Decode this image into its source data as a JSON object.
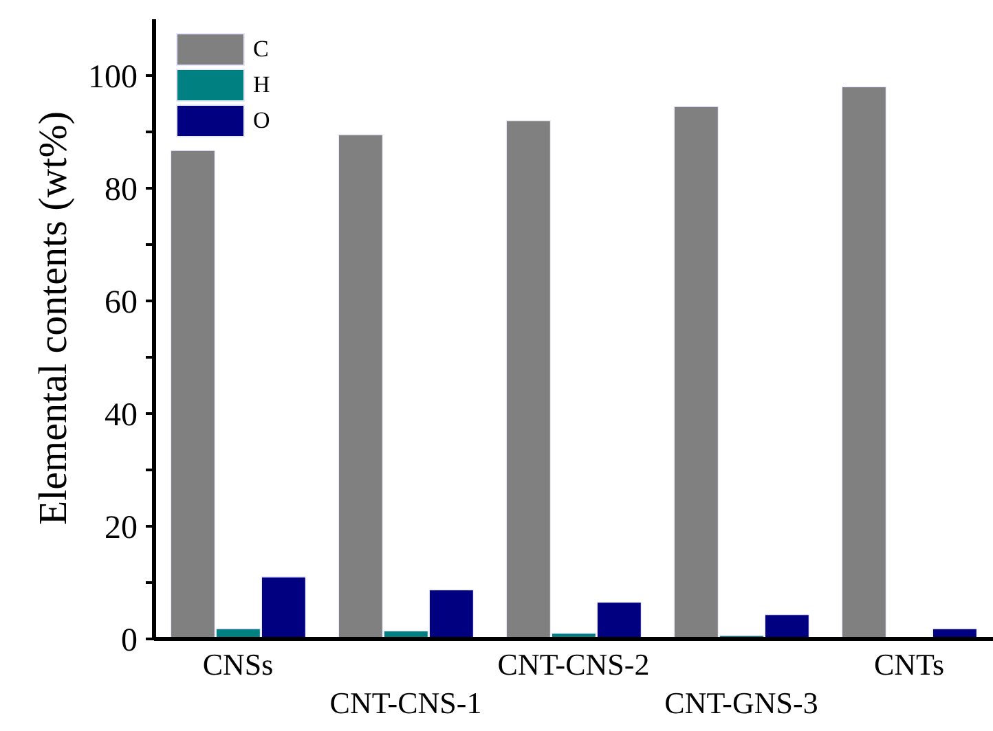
{
  "chart_data": {
    "type": "bar",
    "ylabel": "Elemental contents (wt%)",
    "categories": [
      "CNSs",
      "CNT-CNS-1",
      "CNT-CNS-2",
      "CNT-GNS-3",
      "CNTs"
    ],
    "series": [
      {
        "name": "C",
        "color": "#808080",
        "values": [
          86.7,
          89.5,
          92.0,
          94.5,
          98.0
        ]
      },
      {
        "name": "H",
        "color": "#008080",
        "values": [
          1.8,
          1.4,
          1.0,
          0.6,
          0
        ]
      },
      {
        "name": "O",
        "color": "#000080",
        "values": [
          11.0,
          8.7,
          6.5,
          4.3,
          1.8
        ]
      }
    ],
    "ylim": [
      0,
      110
    ],
    "yticks": [
      0,
      {
        "value": 10,
        "label": null
      },
      20,
      {
        "value": 30,
        "label": null
      },
      40,
      {
        "value": 50,
        "label": null
      },
      60,
      {
        "value": 70,
        "label": null
      },
      80,
      {
        "value": 90,
        "label": null
      },
      100
    ],
    "grid": false,
    "legend": "top left"
  }
}
